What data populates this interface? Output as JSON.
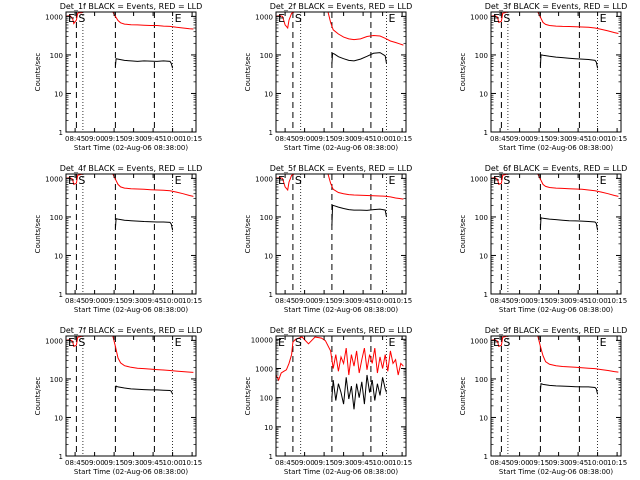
{
  "figure": {
    "common": {
      "ylabel": "Counts/sec",
      "xlabel": "Start Time (02-Aug-06 08:38:00)",
      "x_ticks": [
        "08:45",
        "09:00",
        "09:15",
        "09:30",
        "09:45",
        "10:00",
        "10:15"
      ],
      "x_tick_minutes": [
        7,
        22,
        37,
        52,
        67,
        82,
        97
      ],
      "x_range_minutes": [
        0,
        100
      ],
      "y_ticks": [
        "1",
        "10",
        "100",
        "1000"
      ],
      "y_tick_values": [
        1,
        10,
        100,
        1000
      ],
      "y_scale": "log",
      "colors": {
        "events": "#000000",
        "lld": "#ff0000",
        "axes": "#000000"
      }
    }
  },
  "chart_data": [
    {
      "type": "line",
      "title": "Det_1f BLACK = Events, RED = LLD",
      "ylim": [
        1,
        1300
      ],
      "markers": [
        {
          "label": "E",
          "x": 0
        },
        {
          "label": "S",
          "x": 8
        },
        {
          "label": "E",
          "x": 82
        }
      ],
      "dashed_lines_x": [
        8,
        38,
        68
      ],
      "dotted_lines_x": [
        13,
        82
      ],
      "series": [
        {
          "name": "LLD",
          "color": "#ff0000",
          "x": [
            0,
            3,
            5,
            6,
            8,
            9,
            10,
            11,
            12,
            13,
            36,
            38,
            40,
            42,
            45,
            50,
            55,
            60,
            65,
            70,
            75,
            80,
            85,
            90,
            95,
            98
          ],
          "y": [
            1000,
            1050,
            900,
            650,
            800,
            1200,
            1250,
            1250,
            1250,
            1300,
            1300,
            1000,
            780,
            680,
            630,
            610,
            600,
            590,
            580,
            580,
            560,
            550,
            520,
            500,
            480,
            470
          ]
        },
        {
          "name": "Events",
          "color": "#000000",
          "x": [
            38,
            38.5,
            40,
            45,
            50,
            55,
            60,
            65,
            70,
            75,
            80,
            81,
            82
          ],
          "y": [
            50,
            80,
            78,
            72,
            70,
            68,
            70,
            69,
            68,
            70,
            68,
            60,
            45
          ]
        }
      ]
    },
    {
      "type": "line",
      "title": "Det_2f BLACK = Events, RED = LLD",
      "ylim": [
        1,
        1300
      ],
      "markers": [
        {
          "label": "E",
          "x": 0
        },
        {
          "label": "S",
          "x": 13
        },
        {
          "label": "E",
          "x": 85
        }
      ],
      "dashed_lines_x": [
        13,
        43,
        73
      ],
      "dotted_lines_x": [
        19,
        85
      ],
      "series": [
        {
          "name": "LLD",
          "color": "#ff0000",
          "x": [
            0,
            3,
            5,
            7,
            9,
            10,
            12,
            14,
            40,
            42,
            44,
            48,
            52,
            56,
            60,
            65,
            70,
            75,
            80,
            84,
            88,
            92,
            95,
            98
          ],
          "y": [
            1000,
            1050,
            1000,
            600,
            500,
            800,
            1200,
            1300,
            1300,
            700,
            450,
            350,
            290,
            260,
            250,
            260,
            300,
            320,
            310,
            270,
            230,
            210,
            195,
            180
          ]
        },
        {
          "name": "Events",
          "color": "#000000",
          "x": [
            43,
            43.5,
            45,
            48,
            52,
            56,
            60,
            65,
            70,
            75,
            80,
            84,
            85
          ],
          "y": [
            60,
            110,
            105,
            90,
            80,
            72,
            70,
            78,
            92,
            110,
            115,
            95,
            60
          ]
        }
      ]
    },
    {
      "type": "line",
      "title": "Det_3f BLACK = Events, RED = LLD",
      "ylim": [
        1,
        1300
      ],
      "markers": [
        {
          "label": "E",
          "x": 0
        },
        {
          "label": "S",
          "x": 8
        },
        {
          "label": "E",
          "x": 82
        }
      ],
      "dashed_lines_x": [
        8,
        38,
        68
      ],
      "dotted_lines_x": [
        13,
        82
      ],
      "series": [
        {
          "name": "LLD",
          "color": "#ff0000",
          "x": [
            0,
            3,
            5,
            6,
            8,
            9,
            11,
            13,
            36,
            38,
            40,
            42,
            45,
            50,
            55,
            60,
            65,
            70,
            75,
            80,
            85,
            90,
            95,
            98
          ],
          "y": [
            1000,
            1050,
            950,
            700,
            750,
            1200,
            1250,
            1300,
            1300,
            950,
            700,
            620,
            580,
            560,
            550,
            545,
            540,
            530,
            520,
            500,
            460,
            420,
            380,
            360
          ]
        },
        {
          "name": "Events",
          "color": "#000000",
          "x": [
            38,
            38.5,
            40,
            45,
            50,
            55,
            60,
            65,
            70,
            75,
            80,
            81,
            82
          ],
          "y": [
            50,
            100,
            98,
            92,
            88,
            85,
            82,
            80,
            78,
            76,
            72,
            65,
            45
          ]
        }
      ]
    },
    {
      "type": "line",
      "title": "Det_4f BLACK = Events, RED = LLD",
      "ylim": [
        1,
        1300
      ],
      "markers": [
        {
          "label": "E",
          "x": 0
        },
        {
          "label": "S",
          "x": 8
        },
        {
          "label": "E",
          "x": 82
        }
      ],
      "dashed_lines_x": [
        8,
        38,
        68
      ],
      "dotted_lines_x": [
        13,
        82
      ],
      "series": [
        {
          "name": "LLD",
          "color": "#ff0000",
          "x": [
            0,
            3,
            5,
            6,
            8,
            9,
            11,
            13,
            36,
            38,
            40,
            42,
            45,
            50,
            55,
            60,
            65,
            70,
            75,
            80,
            85,
            90,
            95,
            98
          ],
          "y": [
            1000,
            1050,
            950,
            700,
            750,
            1200,
            1250,
            1300,
            1300,
            950,
            700,
            600,
            560,
            540,
            530,
            520,
            510,
            500,
            490,
            480,
            440,
            400,
            360,
            340
          ]
        },
        {
          "name": "Events",
          "color": "#000000",
          "x": [
            38,
            38.5,
            40,
            45,
            50,
            55,
            60,
            65,
            70,
            75,
            80,
            81,
            82
          ],
          "y": [
            50,
            90,
            88,
            82,
            80,
            78,
            76,
            75,
            74,
            74,
            72,
            65,
            45
          ]
        }
      ]
    },
    {
      "type": "line",
      "title": "Det_5f BLACK = Events, RED = LLD",
      "ylim": [
        1,
        1300
      ],
      "markers": [
        {
          "label": "E",
          "x": 0
        },
        {
          "label": "S",
          "x": 13
        },
        {
          "label": "E",
          "x": 85
        }
      ],
      "dashed_lines_x": [
        13,
        43,
        73
      ],
      "dotted_lines_x": [
        19,
        85
      ],
      "series": [
        {
          "name": "LLD",
          "color": "#ff0000",
          "x": [
            0,
            3,
            5,
            7,
            9,
            10,
            12,
            14,
            40,
            42,
            44,
            48,
            52,
            56,
            60,
            65,
            70,
            75,
            80,
            84,
            88,
            92,
            95,
            98
          ],
          "y": [
            1000,
            1050,
            1000,
            600,
            500,
            800,
            1200,
            1300,
            1300,
            750,
            520,
            430,
            400,
            380,
            370,
            365,
            360,
            355,
            350,
            345,
            330,
            310,
            300,
            290
          ]
        },
        {
          "name": "Events",
          "color": "#000000",
          "x": [
            43,
            43.5,
            45,
            48,
            52,
            56,
            60,
            65,
            70,
            75,
            80,
            84,
            85
          ],
          "y": [
            60,
            200,
            195,
            180,
            165,
            155,
            150,
            150,
            148,
            155,
            160,
            150,
            100
          ]
        }
      ]
    },
    {
      "type": "line",
      "title": "Det_6f BLACK = Events, RED = LLD",
      "ylim": [
        1,
        1300
      ],
      "markers": [
        {
          "label": "E",
          "x": 0
        },
        {
          "label": "S",
          "x": 8
        },
        {
          "label": "E",
          "x": 82
        }
      ],
      "dashed_lines_x": [
        8,
        38,
        68
      ],
      "dotted_lines_x": [
        13,
        82
      ],
      "series": [
        {
          "name": "LLD",
          "color": "#ff0000",
          "x": [
            0,
            3,
            5,
            6,
            8,
            9,
            11,
            13,
            36,
            38,
            40,
            42,
            45,
            50,
            55,
            60,
            65,
            70,
            75,
            80,
            85,
            90,
            95,
            98
          ],
          "y": [
            1000,
            1050,
            950,
            700,
            750,
            1200,
            1250,
            1300,
            1300,
            950,
            700,
            620,
            580,
            560,
            550,
            540,
            530,
            520,
            500,
            480,
            440,
            400,
            360,
            340
          ]
        },
        {
          "name": "Events",
          "color": "#000000",
          "x": [
            38,
            38.5,
            40,
            45,
            50,
            55,
            60,
            65,
            70,
            75,
            80,
            81,
            82
          ],
          "y": [
            50,
            95,
            92,
            88,
            85,
            82,
            80,
            79,
            78,
            76,
            74,
            68,
            45
          ]
        }
      ]
    },
    {
      "type": "line",
      "title": "Det_7f BLACK = Events, RED = LLD",
      "ylim": [
        1,
        1300
      ],
      "markers": [
        {
          "label": "E",
          "x": 0
        },
        {
          "label": "S",
          "x": 8
        },
        {
          "label": "E",
          "x": 82
        }
      ],
      "dashed_lines_x": [
        8,
        38,
        68
      ],
      "dotted_lines_x": [
        13,
        82
      ],
      "series": [
        {
          "name": "LLD",
          "color": "#ff0000",
          "x": [
            0,
            3,
            5,
            6,
            8,
            9,
            11,
            13,
            36,
            38,
            40,
            42,
            45,
            50,
            55,
            60,
            65,
            70,
            75,
            80,
            85,
            90,
            95,
            98
          ],
          "y": [
            1000,
            1050,
            950,
            700,
            750,
            1200,
            1250,
            1300,
            1300,
            700,
            350,
            260,
            220,
            200,
            190,
            185,
            180,
            175,
            170,
            165,
            160,
            155,
            150,
            148
          ]
        },
        {
          "name": "Events",
          "color": "#000000",
          "x": [
            38,
            38.5,
            40,
            45,
            50,
            55,
            60,
            65,
            70,
            75,
            80,
            81,
            82
          ],
          "y": [
            50,
            65,
            62,
            58,
            55,
            54,
            53,
            52,
            52,
            51,
            50,
            48,
            40
          ]
        }
      ]
    },
    {
      "type": "line",
      "title": "Det_8f BLACK = Events, RED = LLD",
      "ylim": [
        1,
        13000
      ],
      "y_ticks": [
        "1",
        "10",
        "100",
        "1000",
        "10000"
      ],
      "y_tick_values": [
        1,
        10,
        100,
        1000,
        10000
      ],
      "markers": [
        {
          "label": "E",
          "x": 0
        },
        {
          "label": "S",
          "x": 13
        },
        {
          "label": "E",
          "x": 85
        }
      ],
      "dashed_lines_x": [
        13,
        43,
        73
      ],
      "dotted_lines_x": [
        19,
        85
      ],
      "series": [
        {
          "name": "LLD",
          "color": "#ff0000",
          "x": [
            0,
            2,
            4,
            6,
            8,
            10,
            12,
            13,
            15,
            20,
            25,
            30,
            35,
            38,
            42,
            44,
            46,
            48,
            50,
            52,
            54,
            56,
            58,
            60,
            62,
            64,
            66,
            68,
            70,
            72,
            74,
            76,
            78,
            80,
            82,
            84,
            86,
            88,
            90,
            92,
            94,
            96,
            98
          ],
          "y": [
            600,
            400,
            700,
            800,
            900,
            1500,
            3000,
            8000,
            10000,
            12000,
            7000,
            12000,
            11000,
            9000,
            4000,
            1000,
            3000,
            800,
            2500,
            1500,
            5000,
            600,
            3000,
            1200,
            4000,
            700,
            2000,
            5000,
            900,
            3000,
            1500,
            5000,
            700,
            2500,
            1000,
            3000,
            800,
            4000,
            1500,
            2000,
            600,
            1500,
            1200
          ]
        },
        {
          "name": "Events",
          "color": "#000000",
          "x": [
            43,
            44,
            46,
            48,
            50,
            52,
            54,
            56,
            58,
            60,
            62,
            64,
            66,
            68,
            70,
            72,
            74,
            76,
            78,
            80,
            82,
            84,
            85
          ],
          "y": [
            100,
            400,
            80,
            300,
            150,
            60,
            500,
            90,
            250,
            40,
            300,
            100,
            350,
            60,
            600,
            150,
            400,
            80,
            300,
            120,
            500,
            200,
            150
          ]
        }
      ]
    },
    {
      "type": "line",
      "title": "Det_9f BLACK = Events, RED = LLD",
      "ylim": [
        1,
        1300
      ],
      "markers": [
        {
          "label": "E",
          "x": 0
        },
        {
          "label": "S",
          "x": 8
        },
        {
          "label": "E",
          "x": 82
        }
      ],
      "dashed_lines_x": [
        8,
        38,
        68
      ],
      "dotted_lines_x": [
        13,
        82
      ],
      "series": [
        {
          "name": "LLD",
          "color": "#ff0000",
          "x": [
            0,
            3,
            5,
            6,
            8,
            9,
            11,
            13,
            36,
            38,
            40,
            42,
            45,
            50,
            55,
            60,
            65,
            70,
            75,
            80,
            85,
            90,
            95,
            98
          ],
          "y": [
            1000,
            1050,
            950,
            700,
            750,
            1200,
            1250,
            1300,
            1300,
            700,
            400,
            280,
            240,
            220,
            210,
            205,
            200,
            195,
            190,
            185,
            175,
            165,
            155,
            150
          ]
        },
        {
          "name": "Events",
          "color": "#000000",
          "x": [
            38,
            38.5,
            40,
            45,
            50,
            55,
            60,
            65,
            70,
            75,
            80,
            81,
            82
          ],
          "y": [
            50,
            75,
            72,
            68,
            66,
            65,
            64,
            63,
            62,
            62,
            60,
            55,
            40
          ]
        }
      ]
    }
  ]
}
